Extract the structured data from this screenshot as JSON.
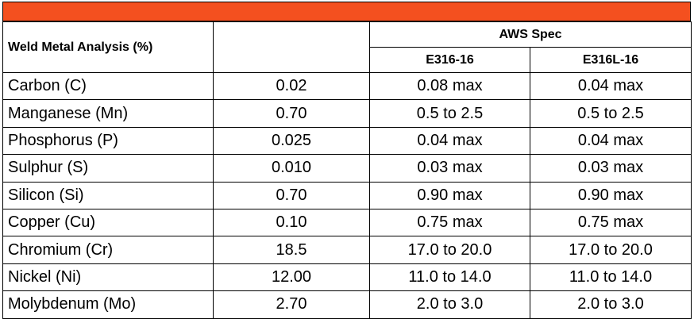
{
  "header": {
    "analysis_label": "Weld Metal Analysis (%)",
    "group_label": "AWS Spec",
    "spec_columns": [
      "E316-16",
      "E316L-16"
    ]
  },
  "rows": [
    {
      "element": "Carbon (C)",
      "value": "0.02",
      "e316": "0.08 max",
      "e316l": "0.04 max"
    },
    {
      "element": "Manganese (Mn)",
      "value": "0.70",
      "e316": "0.5 to 2.5",
      "e316l": "0.5 to 2.5"
    },
    {
      "element": "Phosphorus (P)",
      "value": "0.025",
      "e316": "0.04 max",
      "e316l": "0.04 max"
    },
    {
      "element": "Sulphur (S)",
      "value": "0.010",
      "e316": "0.03 max",
      "e316l": "0.03 max"
    },
    {
      "element": "Silicon (Si)",
      "value": "0.70",
      "e316": "0.90 max",
      "e316l": "0.90 max"
    },
    {
      "element": "Copper (Cu)",
      "value": "0.10",
      "e316": "0.75 max",
      "e316l": "0.75 max"
    },
    {
      "element": "Chromium (Cr)",
      "value": "18.5",
      "e316": "17.0 to 20.0",
      "e316l": "17.0 to 20.0"
    },
    {
      "element": "Nickel (Ni)",
      "value": "12.00",
      "e316": "11.0 to 14.0",
      "e316l": "11.0 to 14.0"
    },
    {
      "element": "Molybdenum (Mo)",
      "value": "2.70",
      "e316": "2.0 to 3.0",
      "e316l": "2.0 to 3.0"
    }
  ],
  "colors": {
    "banner": "#f4501f",
    "border": "#000000"
  }
}
